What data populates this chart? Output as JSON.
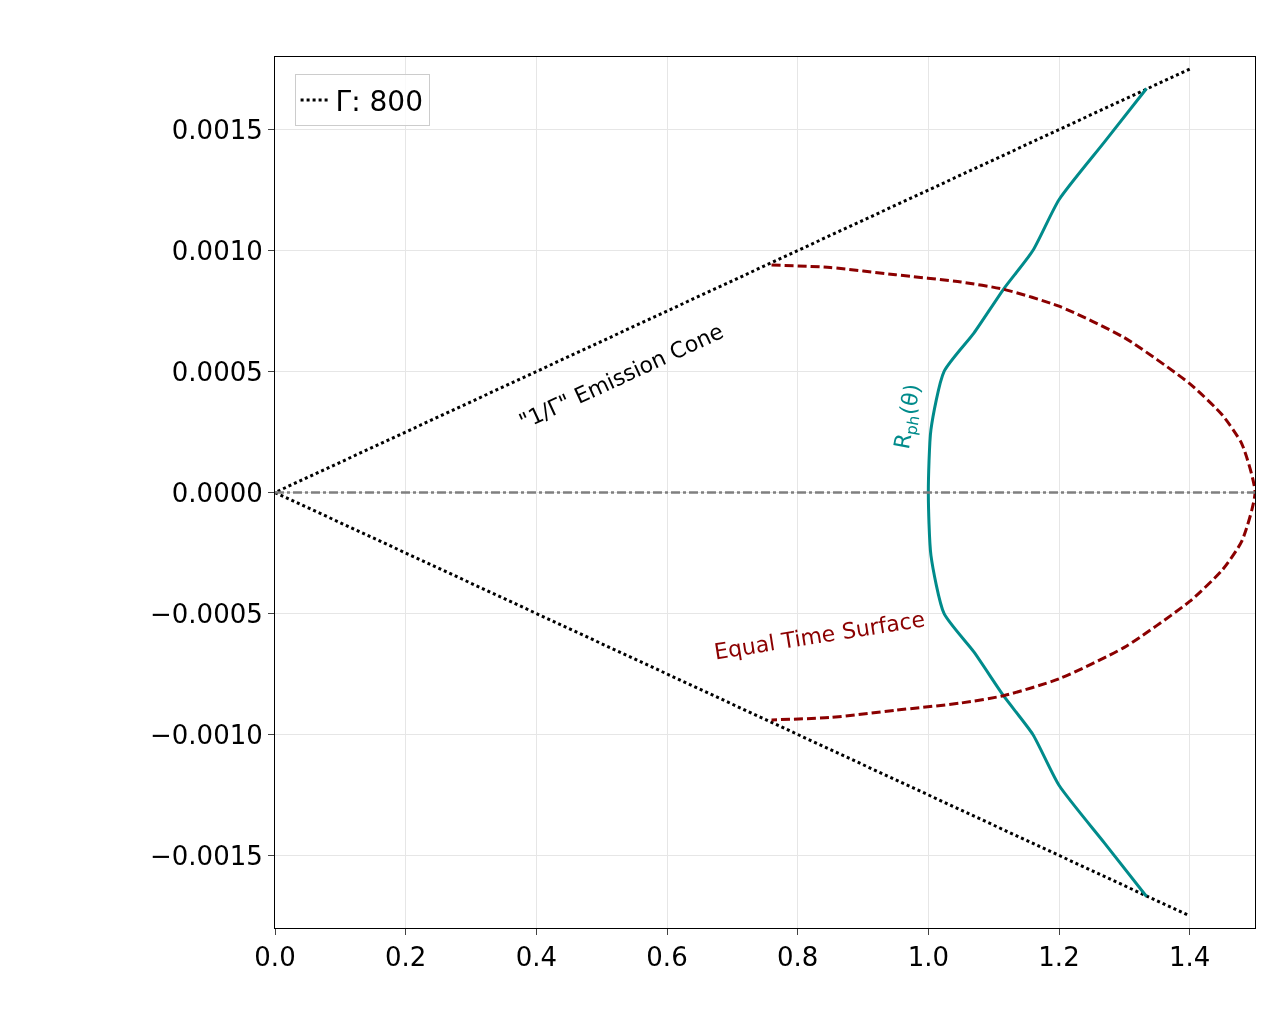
{
  "chart_data": {
    "type": "line",
    "xlim": [
      0,
      1.5
    ],
    "xticks": [
      {
        "value": 0,
        "label": "0.0"
      },
      {
        "value": 0.2,
        "label": "0.2"
      },
      {
        "value": 0.4,
        "label": "0.4"
      },
      {
        "value": 0.6,
        "label": "0.6"
      },
      {
        "value": 0.8,
        "label": "0.8"
      },
      {
        "value": 1.0,
        "label": "1.0"
      },
      {
        "value": 1.2,
        "label": "1.2"
      },
      {
        "value": 1.4,
        "label": "1.4"
      }
    ],
    "ylim": [
      -0.0018,
      0.0018
    ],
    "yticks": [
      {
        "value": -0.0015,
        "label": "−0.0015"
      },
      {
        "value": -0.001,
        "label": "−0.0010"
      },
      {
        "value": -0.0005,
        "label": "−0.0005"
      },
      {
        "value": 0,
        "label": "0.0000"
      },
      {
        "value": 0.0005,
        "label": "0.0005"
      },
      {
        "value": 0.001,
        "label": "0.0010"
      },
      {
        "value": 0.0015,
        "label": "0.0015"
      }
    ],
    "grid": true,
    "legend": "top left",
    "marker": "none",
    "series": [
      {
        "name": "Γ: 800",
        "color": "#000000",
        "line_style": "dotted",
        "x": [
          1.4,
          0,
          1.4
        ],
        "values": [
          0.00175,
          0,
          -0.00175
        ]
      },
      {
        "color": "#008b8b",
        "line_style": "solid",
        "x": [
          1.334,
          1.27,
          1.2,
          1.16,
          1.115,
          1.07,
          1.024,
          1.004,
          1.0,
          1.004,
          1.024,
          1.07,
          1.115,
          1.16,
          1.2,
          1.27,
          1.334
        ],
        "values": [
          0.00167,
          0.00145,
          0.00121,
          0.001,
          0.00084,
          0.00066,
          0.0005,
          0.00026,
          0,
          -0.00026,
          -0.0005,
          -0.00066,
          -0.00084,
          -0.001,
          -0.00121,
          -0.00145,
          -0.00167
        ]
      },
      {
        "color": "#8b0000",
        "line_style": "dashed",
        "x": [
          0.76,
          0.85,
          0.95,
          1.05,
          1.115,
          1.2,
          1.3,
          1.4,
          1.45,
          1.48,
          1.5,
          1.48,
          1.45,
          1.4,
          1.3,
          1.2,
          1.115,
          1.05,
          0.95,
          0.85,
          0.76
        ],
        "values": [
          0.00094,
          0.00093,
          0.0009,
          0.00087,
          0.00084,
          0.00077,
          0.00064,
          0.00045,
          0.00032,
          0.0002,
          0,
          -0.0002,
          -0.00032,
          -0.00045,
          -0.00064,
          -0.00077,
          -0.00084,
          -0.00087,
          -0.0009,
          -0.00093,
          -0.00094
        ]
      }
    ],
    "ref_lines": [
      {
        "axis": "y",
        "value": 0,
        "color": "#808080",
        "line_style": "dashdot"
      }
    ],
    "annotations": [
      "\"1/Γ\" Emission Cone",
      "R$_{ph}$(θ)",
      "Equal Time Surface"
    ]
  }
}
